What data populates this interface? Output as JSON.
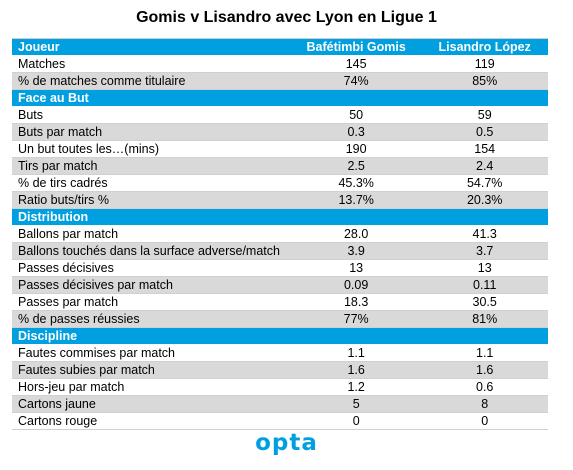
{
  "title": "Gomis v Lisandro avec Lyon en Ligue 1",
  "header": {
    "label": "Joueur",
    "player1": "Bafétimbi Gomis",
    "player2": "Lisandro López"
  },
  "rows": [
    {
      "type": "row",
      "label": "Matches",
      "a": "145",
      "b": "119"
    },
    {
      "type": "row",
      "label": "% de matches comme titulaire",
      "a": "74%",
      "b": "85%"
    },
    {
      "type": "section",
      "label": "Face au But"
    },
    {
      "type": "row",
      "label": "Buts",
      "a": "50",
      "b": "59"
    },
    {
      "type": "row",
      "label": "Buts par match",
      "a": "0.3",
      "b": "0.5"
    },
    {
      "type": "row",
      "label": "Un but toutes les…(mins)",
      "a": "190",
      "b": "154"
    },
    {
      "type": "row",
      "label": "Tirs par match",
      "a": "2.5",
      "b": "2.4"
    },
    {
      "type": "row",
      "label": "% de tirs cadrés",
      "a": "45.3%",
      "b": "54.7%"
    },
    {
      "type": "row",
      "label": "Ratio buts/tirs %",
      "a": "13.7%",
      "b": "20.3%"
    },
    {
      "type": "section",
      "label": "Distribution"
    },
    {
      "type": "row",
      "label": "Ballons par match",
      "a": "28.0",
      "b": "41.3"
    },
    {
      "type": "row",
      "label": "Ballons touchés dans la surface adverse/match",
      "a": "3.9",
      "b": "3.7"
    },
    {
      "type": "row",
      "label": "Passes décisives",
      "a": "13",
      "b": "13"
    },
    {
      "type": "row",
      "label": "Passes décisives par match",
      "a": "0.09",
      "b": "0.11"
    },
    {
      "type": "row",
      "label": "Passes par match",
      "a": "18.3",
      "b": "30.5"
    },
    {
      "type": "row",
      "label": "% de passes réussies",
      "a": "77%",
      "b": "81%"
    },
    {
      "type": "section",
      "label": "Discipline"
    },
    {
      "type": "row",
      "label": "Fautes commises par match",
      "a": "1.1",
      "b": "1.1"
    },
    {
      "type": "row",
      "label": "Fautes subies par match",
      "a": "1.6",
      "b": "1.6"
    },
    {
      "type": "row",
      "label": "Hors-jeu par match",
      "a": "1.2",
      "b": "0.6"
    },
    {
      "type": "row",
      "label": "Cartons jaune",
      "a": "5",
      "b": "8"
    },
    {
      "type": "row",
      "label": "Cartons rouge",
      "a": "0",
      "b": "0"
    }
  ],
  "logo": "opta",
  "colors": {
    "section": "#00a0e0",
    "alt_row": "#d9d9d9"
  }
}
